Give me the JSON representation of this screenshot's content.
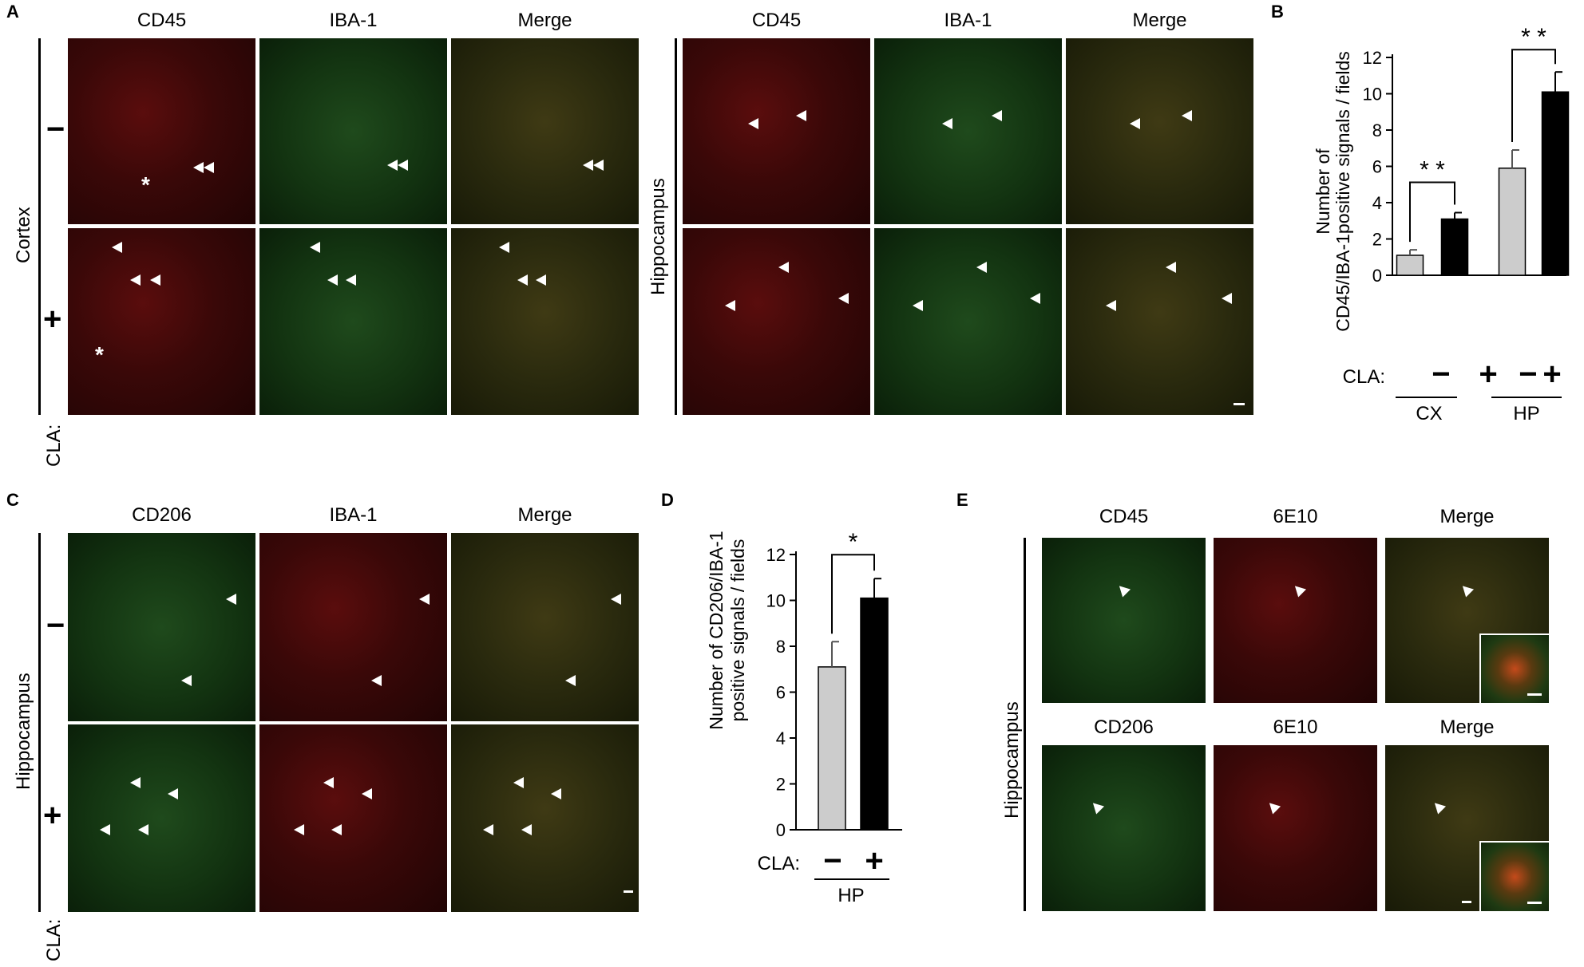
{
  "panel_a": {
    "label": "A",
    "col_headers_left": [
      "CD45",
      "IBA-1",
      "Merge"
    ],
    "col_headers_right": [
      "CD45",
      "IBA-1",
      "Merge"
    ],
    "row_label_left": "Cortex",
    "row_label_right": "Hippocampus",
    "row_signs": [
      "−",
      "+"
    ],
    "condition_label": "CLA:"
  },
  "panel_b": {
    "label": "B",
    "ylabel_line1": "Number of",
    "ylabel_line2": "CD45/IBA-1positive signals / fields",
    "condition_label": "CLA:",
    "signs": [
      "−",
      "+",
      "−",
      "+"
    ],
    "groups": [
      "CX",
      "HP"
    ],
    "significance": [
      "* *",
      "* *"
    ]
  },
  "panel_c": {
    "label": "C",
    "col_headers": [
      "CD206",
      "IBA-1",
      "Merge"
    ],
    "row_label": "Hippocampus",
    "row_signs": [
      "−",
      "+"
    ],
    "condition_label": "CLA:"
  },
  "panel_d": {
    "label": "D",
    "ylabel_line1": "Number of CD206/IBA-1",
    "ylabel_line2": "positive signals / fields",
    "condition_label": "CLA:",
    "signs": [
      "−",
      "+"
    ],
    "group": "HP",
    "significance": "*"
  },
  "panel_e": {
    "label": "E",
    "row1_headers": [
      "CD45",
      "6E10",
      "Merge"
    ],
    "row2_headers": [
      "CD206",
      "6E10",
      "Merge"
    ],
    "row_label": "Hippocampus"
  },
  "chart_data": [
    {
      "type": "bar",
      "panel": "B",
      "categories": [
        "CX −",
        "CX +",
        "HP −",
        "HP +"
      ],
      "values": [
        1.1,
        3.1,
        5.9,
        10.1
      ],
      "errors": [
        0.3,
        0.35,
        1.0,
        1.1
      ],
      "colors": [
        "#cccccc",
        "#000000",
        "#cccccc",
        "#000000"
      ],
      "ylim": [
        0,
        12
      ],
      "yticks": [
        0,
        2,
        4,
        6,
        8,
        10,
        12
      ],
      "ylabel": "Number of CD45/IBA-1positive signals / fields"
    },
    {
      "type": "bar",
      "panel": "D",
      "categories": [
        "HP −",
        "HP +"
      ],
      "values": [
        7.1,
        10.1
      ],
      "errors": [
        1.1,
        0.85
      ],
      "colors": [
        "#cccccc",
        "#000000"
      ],
      "ylim": [
        0,
        12
      ],
      "yticks": [
        0,
        2,
        4,
        6,
        8,
        10,
        12
      ],
      "ylabel": "Number of CD206/IBA-1 positive signals / fields"
    }
  ]
}
